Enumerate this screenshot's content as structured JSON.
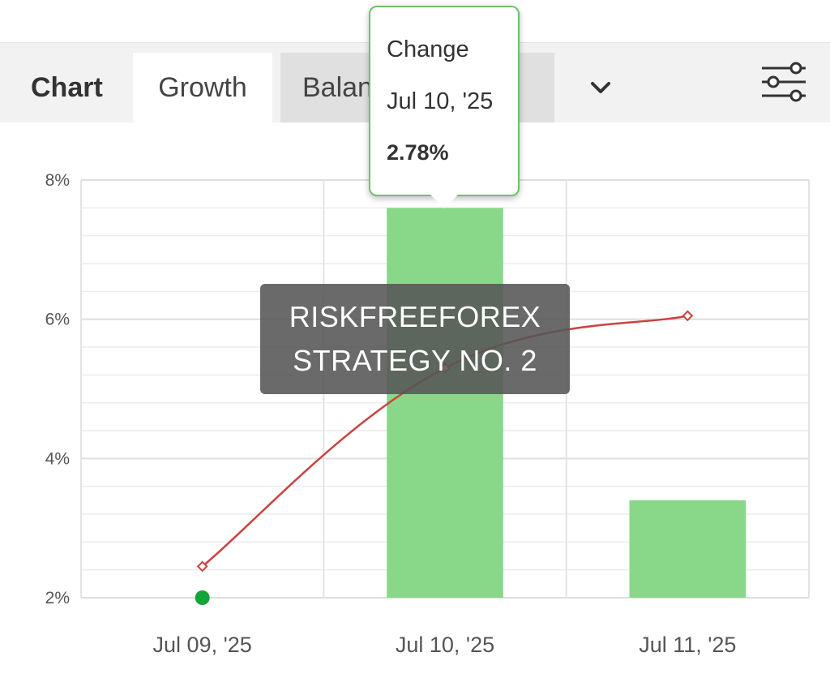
{
  "tabs": {
    "title": "Chart",
    "items": [
      {
        "label": "Growth",
        "state": "active"
      },
      {
        "label": "Balance",
        "state": "partially hidden"
      }
    ]
  },
  "icons": {
    "more": "chevron-down-icon",
    "settings": "sliders-icon"
  },
  "watermark": {
    "line1": "RISKFREEFOREX",
    "line2": "STRATEGY NO. 2"
  },
  "tooltip": {
    "title": "Change",
    "date": "Jul 10, '25",
    "value": "2.78%"
  },
  "colors": {
    "bar": "#89d889",
    "line": "#c9433f",
    "dot": "#13a538",
    "tooltip_border": "#6cc46c"
  },
  "chart_data": {
    "type": "bar",
    "categories": [
      "Jul 09, '25",
      "Jul 10, '25",
      "Jul 11, '25"
    ],
    "ylim": [
      2,
      8
    ],
    "yticks": [
      {
        "value": 2,
        "label": "2%"
      },
      {
        "value": 4,
        "label": "4%"
      },
      {
        "value": 6,
        "label": "6%"
      },
      {
        "value": 8,
        "label": "8%"
      }
    ],
    "bars": [
      null,
      7.6,
      3.4
    ],
    "line": [
      2.45,
      5.3,
      6.05
    ],
    "point": {
      "category": "Jul 09, '25",
      "value": 2.0
    },
    "grid": true,
    "title": "",
    "xlabel": "",
    "ylabel": ""
  }
}
